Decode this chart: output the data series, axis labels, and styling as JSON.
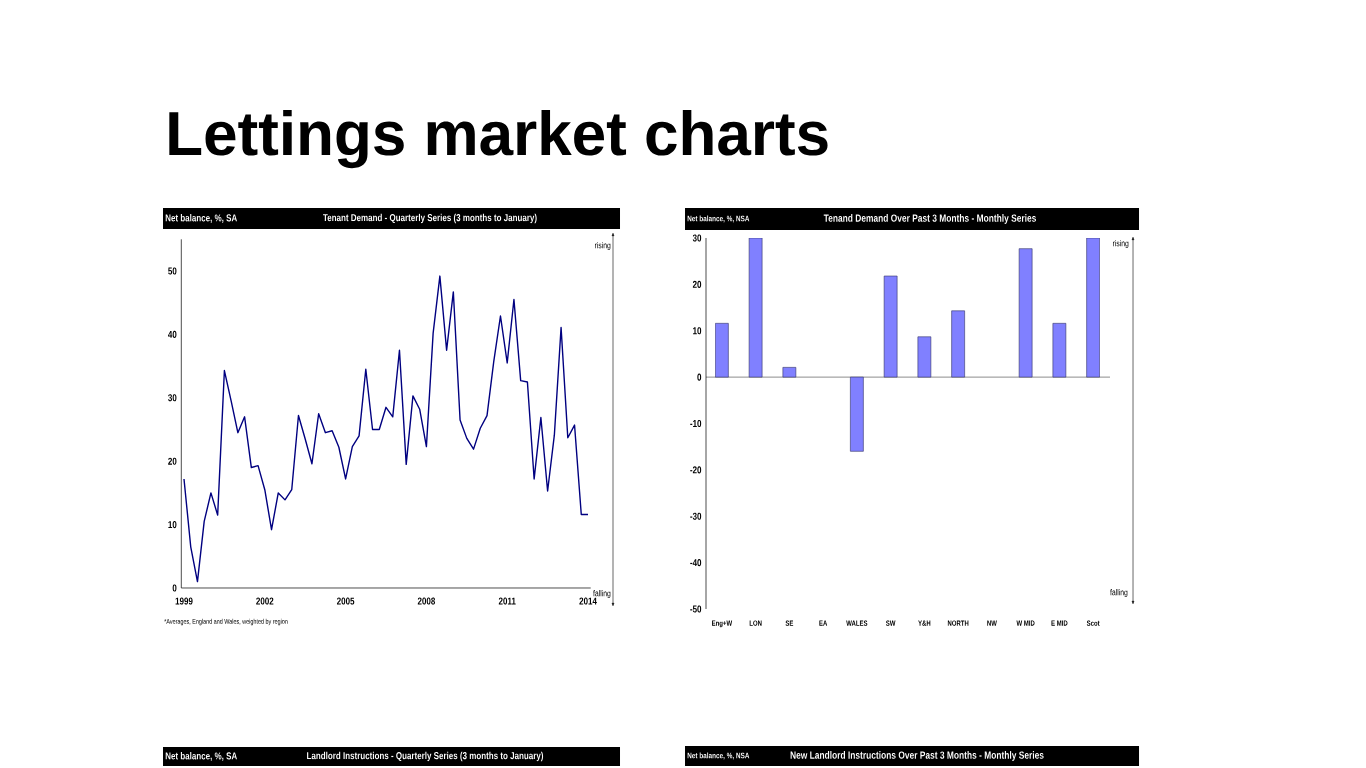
{
  "chart_data": [
    {
      "type": "other",
      "title": "Lettings market charts"
    },
    {
      "type": "line",
      "title": "Tenant Demand - Quarterly Series (3 months to January)",
      "ylabel": "Net balance, %, SA",
      "x": [
        1999,
        1999.25,
        1999.5,
        1999.75,
        2000,
        2000.25,
        2000.5,
        2000.75,
        2001,
        2001.25,
        2001.5,
        2001.75,
        2002,
        2002.25,
        2002.5,
        2002.75,
        2003,
        2003.25,
        2003.5,
        2003.75,
        2004,
        2004.25,
        2004.5,
        2004.75,
        2005,
        2005.25,
        2005.5,
        2005.75,
        2006,
        2006.25,
        2006.5,
        2006.75,
        2007,
        2007.25,
        2007.5,
        2007.75,
        2008,
        2008.25,
        2008.5,
        2008.75,
        2009,
        2009.25,
        2009.5,
        2009.75,
        2010,
        2010.25,
        2010.5,
        2010.75,
        2011,
        2011.25,
        2011.5,
        2011.75,
        2012,
        2012.25,
        2012.5,
        2012.75,
        2013,
        2013.25,
        2013.5,
        2013.75,
        2014
      ],
      "values": [
        17.2,
        6.5,
        1.0,
        10.5,
        15.0,
        11.5,
        34.3,
        29.5,
        24.5,
        27.0,
        19.0,
        19.3,
        15.5,
        9.2,
        15.0,
        13.9,
        15.5,
        27.2,
        23.5,
        19.6,
        27.5,
        24.5,
        24.8,
        22.2,
        17.2,
        22.3,
        24.0,
        34.5,
        25.0,
        25.0,
        28.5,
        27.0,
        37.5,
        19.5,
        30.3,
        28.2,
        22.3,
        40.2,
        49.2,
        37.5,
        46.7,
        26.5,
        23.6,
        21.9,
        25.2,
        27.2,
        35.7,
        42.9,
        35.5,
        45.5,
        32.7,
        32.5,
        17.2,
        26.9,
        15.3,
        24.1,
        41.1,
        23.7,
        25.7,
        11.6,
        11.6
      ],
      "color": "#000080",
      "line_style": "solid",
      "xlim": [
        1998.9,
        2014.1
      ],
      "xticks": [
        1999,
        2002,
        2005,
        2008,
        2011,
        2014
      ],
      "ylim": [
        0,
        55
      ],
      "yticks": [
        0,
        10,
        20,
        30,
        40,
        50
      ],
      "annotations": [
        "rising",
        "falling",
        "*Averages, England and Wales, weighted by region"
      ]
    },
    {
      "type": "bar",
      "title": "Tenand Demand Over Past 3 Months - Monthly Series",
      "ylabel": "Net balance, %, NSA",
      "categories": [
        "Eng+W",
        "LON",
        "SE",
        "EA",
        "WALES",
        "SW",
        "Y&H",
        "NORTH",
        "NW",
        "W MID",
        "E MID",
        "Scot"
      ],
      "values": [
        11.6,
        30,
        2.1,
        null,
        -16.0,
        21.8,
        8.7,
        14.3,
        null,
        27.7,
        11.6,
        30
      ],
      "color": "#8080ff",
      "ylim": [
        -50,
        30
      ],
      "yticks": [
        -50,
        -40,
        -30,
        -20,
        -10,
        0,
        10,
        20,
        30
      ],
      "annotations": [
        "rising",
        "falling"
      ]
    },
    {
      "type": "other",
      "title": "Landlord Instructions - Quarterly Series (3 months to January)",
      "ylabel": "Net balance, %, SA"
    },
    {
      "type": "other",
      "title": "New Landlord Instructions Over Past 3 Months - Monthly Series",
      "ylabel": "Net balance, %, NSA"
    }
  ]
}
